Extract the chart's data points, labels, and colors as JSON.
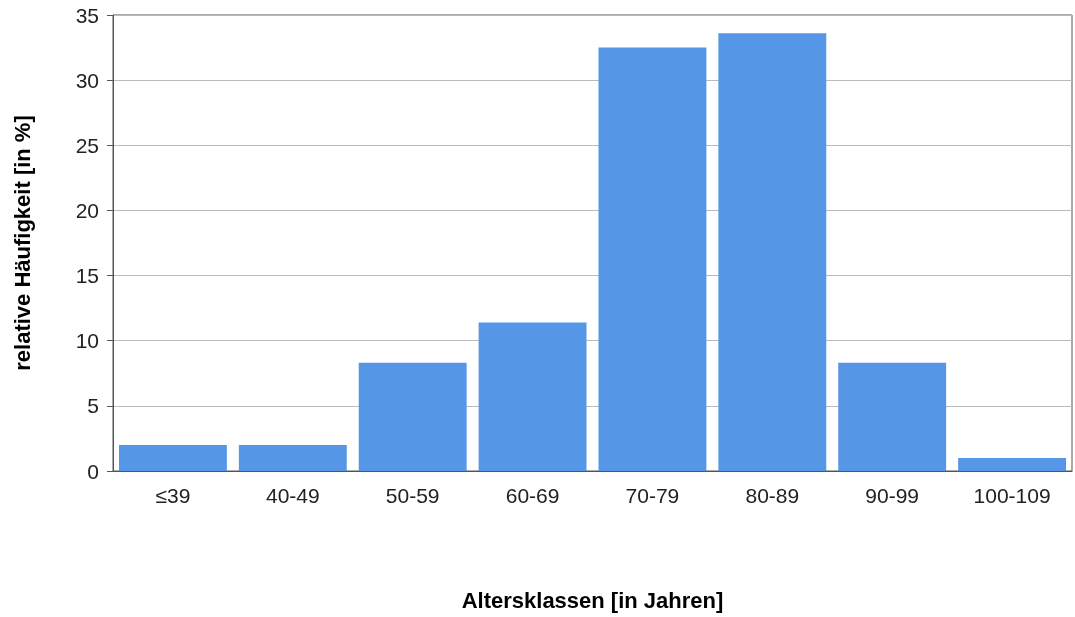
{
  "chart_data": {
    "type": "bar",
    "xlabel": "Altersklassen [in Jahren]",
    "ylabel": "relative Häufigkeit [in %]",
    "categories": [
      "≤39",
      "40-49",
      "50-59",
      "60-69",
      "70-79",
      "80-89",
      "90-99",
      "100-109"
    ],
    "values": [
      2.0,
      2.0,
      8.3,
      11.4,
      32.5,
      33.6,
      8.3,
      1.0
    ],
    "color": "#5596e6",
    "ylim": [
      0,
      35
    ],
    "yticks": [
      0,
      5,
      10,
      15,
      20,
      25,
      30,
      35
    ],
    "grid": "y"
  }
}
